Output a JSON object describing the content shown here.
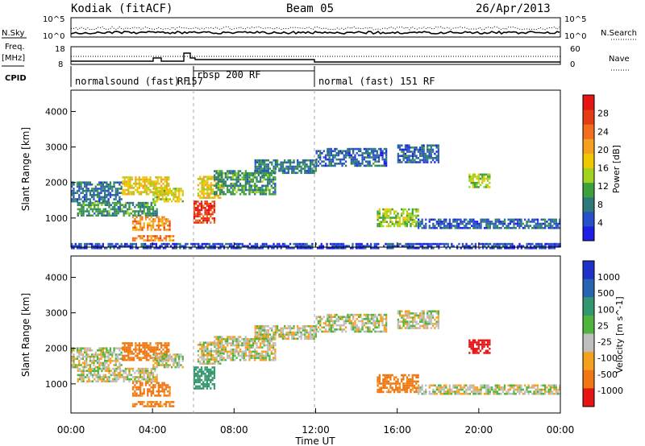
{
  "header": {
    "radar": "Kodiak (fitACF)",
    "beam": "Beam 05",
    "date": "26/Apr/2013"
  },
  "noise_panel": {
    "left_label": "N.Sky",
    "right_label": "N.Search",
    "ticks": [
      "10^5",
      "10^0"
    ],
    "right_ticks": [
      "10^5",
      "10^0"
    ]
  },
  "freq_panel": {
    "left_label_1": "Freq.",
    "left_label_2": "[MHz]",
    "left_ticks": [
      "18",
      "8"
    ],
    "right_label": "Nave",
    "right_ticks": [
      "60",
      "0"
    ]
  },
  "cpid": {
    "label": "CPID",
    "segments": [
      "normalsound (fast) 157",
      "RF",
      "rbsp 200 RF",
      "normal (fast) 151 RF"
    ]
  },
  "axes": {
    "ylabel": "Slant Range [km]",
    "xlabel": "Time UT",
    "x_ticks": [
      "00:00",
      "04:00",
      "08:00",
      "12:00",
      "16:00",
      "20:00",
      "00:00"
    ],
    "y_ticks": [
      "1000",
      "2000",
      "3000",
      "4000"
    ]
  },
  "chart_data": [
    {
      "type": "heatmap",
      "title": "",
      "quantity": "Power",
      "colorbar_label": "Power [dB]",
      "colorbar_ticks": [
        "4",
        "8",
        "12",
        "16",
        "20",
        "24",
        "28"
      ],
      "colorbar_colors": [
        "#1e1ee6",
        "#2850c8",
        "#2d7a78",
        "#3ca03c",
        "#a0d21e",
        "#f0c800",
        "#f5a01e",
        "#f06e1e",
        "#e63c14",
        "#e61414"
      ],
      "xlabel": "Time UT",
      "ylabel": "Slant Range [km]",
      "x_range_hours": [
        0,
        24
      ],
      "y_range_km": [
        180,
        4600
      ],
      "echo_regions": [
        {
          "t0": 0.0,
          "t1": 2.5,
          "r0": 1500,
          "r1": 2050,
          "power": 7
        },
        {
          "t0": 0.3,
          "t1": 4.2,
          "r0": 1100,
          "r1": 1500,
          "power": 10
        },
        {
          "t0": 2.5,
          "t1": 4.8,
          "r0": 1700,
          "r1": 2200,
          "power": 18
        },
        {
          "t0": 4.0,
          "t1": 5.5,
          "r0": 1500,
          "r1": 1900,
          "power": 16
        },
        {
          "t0": 3.0,
          "t1": 4.8,
          "r0": 700,
          "r1": 1100,
          "power": 22
        },
        {
          "t0": 6.0,
          "t1": 7.0,
          "r0": 900,
          "r1": 1500,
          "power": 28
        },
        {
          "t0": 6.2,
          "t1": 7.4,
          "r0": 1600,
          "r1": 2200,
          "power": 18
        },
        {
          "t0": 7.0,
          "t1": 10.0,
          "r0": 1700,
          "r1": 2400,
          "power": 10
        },
        {
          "t0": 9.0,
          "t1": 12.0,
          "r0": 2300,
          "r1": 2700,
          "power": 8
        },
        {
          "t0": 12.0,
          "t1": 15.5,
          "r0": 2500,
          "r1": 3000,
          "power": 6
        },
        {
          "t0": 15.0,
          "t1": 17.0,
          "r0": 800,
          "r1": 1300,
          "power": 14
        },
        {
          "t0": 16.0,
          "t1": 18.0,
          "r0": 2600,
          "r1": 3100,
          "power": 6
        },
        {
          "t0": 19.5,
          "t1": 20.5,
          "r0": 1900,
          "r1": 2300,
          "power": 14
        },
        {
          "t0": 17.0,
          "t1": 24.0,
          "r0": 750,
          "r1": 1000,
          "power": 6
        },
        {
          "t0": 3.0,
          "t1": 5.0,
          "r0": 400,
          "r1": 560,
          "power": 22
        },
        {
          "t0": 0.0,
          "t1": 24.0,
          "r0": 180,
          "r1": 300,
          "power": 4
        }
      ]
    },
    {
      "type": "heatmap",
      "title": "",
      "quantity": "Velocity",
      "colorbar_label": "Velocity [m s^-1]",
      "colorbar_ticks": [
        "1000",
        "500",
        "100",
        "25",
        "-25",
        "-100",
        "-500",
        "-1000"
      ],
      "colorbar_colors": [
        "#1e32c8",
        "#2864b4",
        "#32966e",
        "#50b43c",
        "#bebebe",
        "#f5a01e",
        "#f07814",
        "#e61414"
      ],
      "xlabel": "Time UT",
      "ylabel": "Slant Range [km]",
      "x_range_hours": [
        0,
        24
      ],
      "y_range_km": [
        180,
        4600
      ],
      "echo_regions": [
        {
          "t0": 0.0,
          "t1": 2.5,
          "r0": 1500,
          "r1": 2050,
          "velocity": 0
        },
        {
          "t0": 0.3,
          "t1": 4.2,
          "r0": 1100,
          "r1": 1500,
          "velocity": 0
        },
        {
          "t0": 2.5,
          "t1": 4.8,
          "r0": 1700,
          "r1": 2200,
          "velocity": -150
        },
        {
          "t0": 4.0,
          "t1": 5.5,
          "r0": 1500,
          "r1": 1900,
          "velocity": 0
        },
        {
          "t0": 3.0,
          "t1": 4.8,
          "r0": 700,
          "r1": 1100,
          "velocity": -150
        },
        {
          "t0": 6.0,
          "t1": 7.0,
          "r0": 900,
          "r1": 1500,
          "velocity": 150
        },
        {
          "t0": 6.2,
          "t1": 7.4,
          "r0": 1600,
          "r1": 2200,
          "velocity": 0
        },
        {
          "t0": 7.0,
          "t1": 10.0,
          "r0": 1700,
          "r1": 2400,
          "velocity": 0
        },
        {
          "t0": 9.0,
          "t1": 12.0,
          "r0": 2300,
          "r1": 2700,
          "velocity": 0
        },
        {
          "t0": 12.0,
          "t1": 15.5,
          "r0": 2500,
          "r1": 3000,
          "velocity": 0
        },
        {
          "t0": 15.0,
          "t1": 17.0,
          "r0": 800,
          "r1": 1300,
          "velocity": -150
        },
        {
          "t0": 16.0,
          "t1": 18.0,
          "r0": 2600,
          "r1": 3100,
          "velocity": 0
        },
        {
          "t0": 19.5,
          "t1": 20.5,
          "r0": 1900,
          "r1": 2300,
          "velocity": -600
        },
        {
          "t0": 17.0,
          "t1": 24.0,
          "r0": 750,
          "r1": 1000,
          "velocity": 0
        },
        {
          "t0": 3.0,
          "t1": 5.0,
          "r0": 400,
          "r1": 560,
          "velocity": -150
        }
      ]
    }
  ]
}
